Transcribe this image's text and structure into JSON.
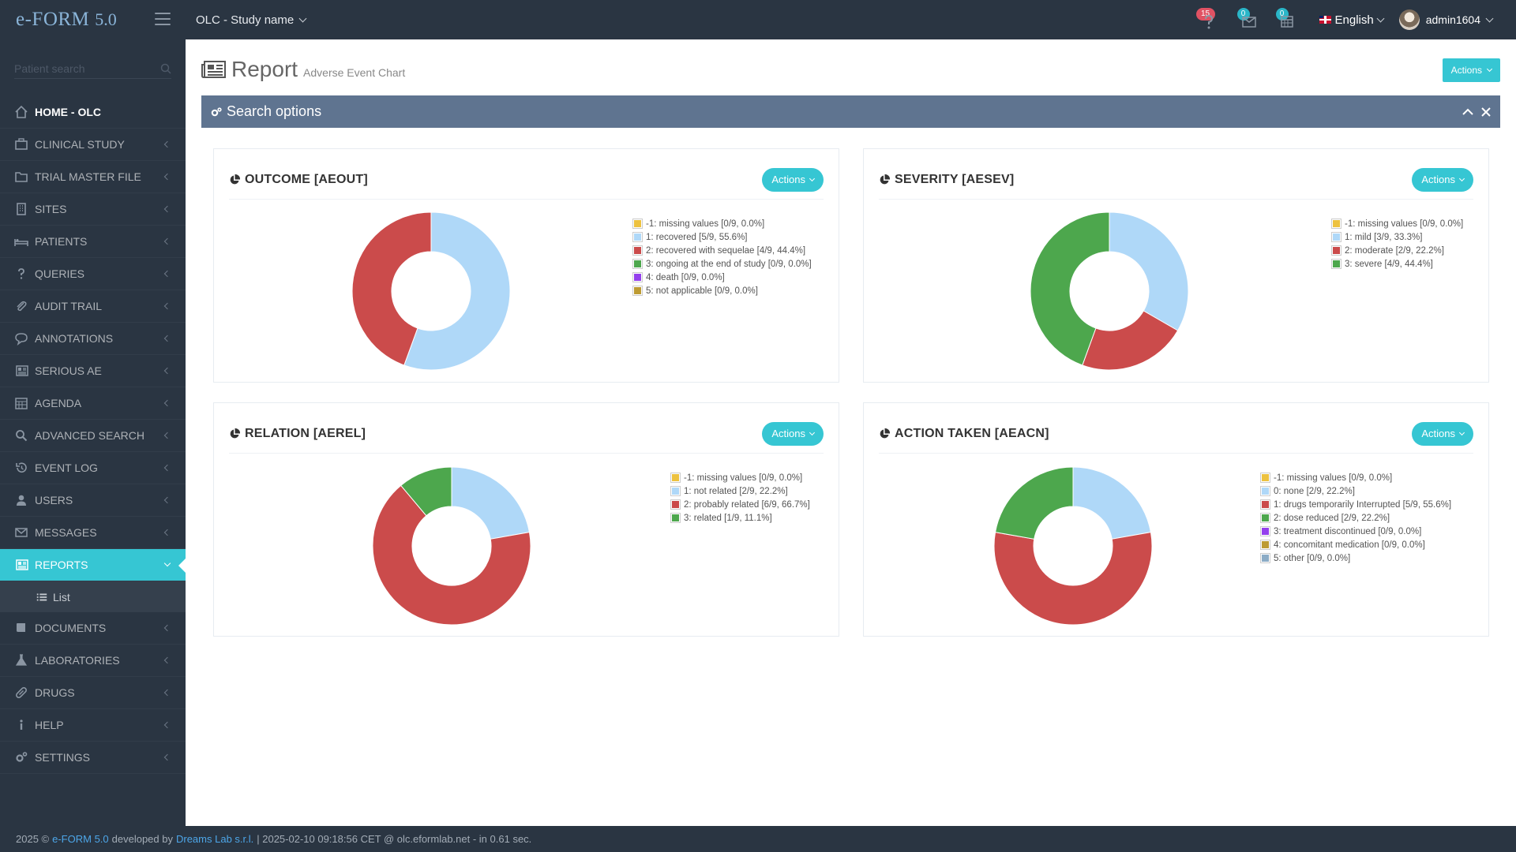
{
  "app": {
    "brand": "e-FORM",
    "version": "5.0"
  },
  "topbar": {
    "study": "OLC - Study name",
    "notifications": [
      {
        "name": "alerts",
        "icon": "question-icon",
        "count": "15"
      },
      {
        "name": "messages",
        "icon": "inbox-icon",
        "count": "0"
      },
      {
        "name": "calendar",
        "icon": "calendar-icon",
        "count": "0"
      }
    ],
    "language": "English",
    "user": "admin1604"
  },
  "sidebar": {
    "search_placeholder": "Patient search",
    "items": [
      {
        "label": "HOME - OLC",
        "icon": "home-icon"
      },
      {
        "label": "CLINICAL STUDY",
        "icon": "briefcase-icon"
      },
      {
        "label": "TRIAL MASTER FILE",
        "icon": "folder-icon"
      },
      {
        "label": "SITES",
        "icon": "building-icon"
      },
      {
        "label": "PATIENTS",
        "icon": "bed-icon"
      },
      {
        "label": "QUERIES",
        "icon": "question-icon"
      },
      {
        "label": "AUDIT TRAIL",
        "icon": "paperclip-icon"
      },
      {
        "label": "ANNOTATIONS",
        "icon": "comment-icon"
      },
      {
        "label": "SERIOUS AE",
        "icon": "newspaper-icon"
      },
      {
        "label": "AGENDA",
        "icon": "calendar-icon"
      },
      {
        "label": "ADVANCED SEARCH",
        "icon": "search-icon"
      },
      {
        "label": "EVENT LOG",
        "icon": "history-icon"
      },
      {
        "label": "USERS",
        "icon": "user-icon"
      },
      {
        "label": "MESSAGES",
        "icon": "envelope-icon"
      },
      {
        "label": "REPORTS",
        "icon": "newspaper-icon"
      },
      {
        "label": "DOCUMENTS",
        "icon": "book-icon"
      },
      {
        "label": "LABORATORIES",
        "icon": "flask-icon"
      },
      {
        "label": "DRUGS",
        "icon": "pill-icon"
      },
      {
        "label": "HELP",
        "icon": "info-icon"
      },
      {
        "label": "SETTINGS",
        "icon": "gears-icon"
      }
    ],
    "submenu": {
      "label": "List",
      "icon": "list-icon"
    }
  },
  "page": {
    "title": "Report",
    "subtitle": "Adverse Event Chart",
    "actions_label": "Actions",
    "search_options_label": "Search options"
  },
  "panels": [
    {
      "title": "OUTCOME [AEOUT]",
      "actions": "Actions"
    },
    {
      "title": "SEVERITY [AESEV]",
      "actions": "Actions"
    },
    {
      "title": "RELATION [AEREL]",
      "actions": "Actions"
    },
    {
      "title": "ACTION TAKEN [AEACN]",
      "actions": "Actions"
    }
  ],
  "colors": {
    "missing": "#edc240",
    "light_blue": "#afd8f8",
    "red": "#cb4b4b",
    "green": "#4da74d",
    "purple": "#9440ed",
    "olive": "#bd9b33",
    "slate": "#8cacc6",
    "accent": "#36c6d3",
    "sidebar": "#2a3542"
  },
  "chart_data": [
    {
      "type": "pie",
      "title": "OUTCOME [AEOUT]",
      "legend_position": "right",
      "series": [
        {
          "name": "-1: missing values [0/9, 0.0%]",
          "value": 0,
          "color": "#edc240"
        },
        {
          "name": "1: recovered [5/9, 55.6%]",
          "value": 5,
          "color": "#afd8f8"
        },
        {
          "name": "2: recovered with sequelae [4/9, 44.4%]",
          "value": 4,
          "color": "#cb4b4b"
        },
        {
          "name": "3: ongoing at the end of study [0/9, 0.0%]",
          "value": 0,
          "color": "#4da74d"
        },
        {
          "name": "4: death [0/9, 0.0%]",
          "value": 0,
          "color": "#9440ed"
        },
        {
          "name": "5: not applicable [0/9, 0.0%]",
          "value": 0,
          "color": "#bd9b33"
        }
      ]
    },
    {
      "type": "pie",
      "title": "SEVERITY [AESEV]",
      "legend_position": "right",
      "series": [
        {
          "name": "-1: missing values [0/9, 0.0%]",
          "value": 0,
          "color": "#edc240"
        },
        {
          "name": "1: mild [3/9, 33.3%]",
          "value": 3,
          "color": "#afd8f8"
        },
        {
          "name": "2: moderate [2/9, 22.2%]",
          "value": 2,
          "color": "#cb4b4b"
        },
        {
          "name": "3: severe [4/9, 44.4%]",
          "value": 4,
          "color": "#4da74d"
        }
      ]
    },
    {
      "type": "pie",
      "title": "RELATION [AEREL]",
      "legend_position": "right",
      "series": [
        {
          "name": "-1: missing values [0/9, 0.0%]",
          "value": 0,
          "color": "#edc240"
        },
        {
          "name": "1: not related [2/9, 22.2%]",
          "value": 2,
          "color": "#afd8f8"
        },
        {
          "name": "2: probably related [6/9, 66.7%]",
          "value": 6,
          "color": "#cb4b4b"
        },
        {
          "name": "3: related [1/9, 11.1%]",
          "value": 1,
          "color": "#4da74d"
        }
      ]
    },
    {
      "type": "pie",
      "title": "ACTION TAKEN [AEACN]",
      "legend_position": "right",
      "series": [
        {
          "name": "-1: missing values [0/9, 0.0%]",
          "value": 0,
          "color": "#edc240"
        },
        {
          "name": "0: none [2/9, 22.2%]",
          "value": 2,
          "color": "#afd8f8"
        },
        {
          "name": "1: drugs temporarily Interrupted [5/9, 55.6%]",
          "value": 5,
          "color": "#cb4b4b"
        },
        {
          "name": "2: dose reduced [2/9, 22.2%]",
          "value": 2,
          "color": "#4da74d"
        },
        {
          "name": "3: treatment discontinued [0/9, 0.0%]",
          "value": 0,
          "color": "#9440ed"
        },
        {
          "name": "4: concomitant medication [0/9, 0.0%]",
          "value": 0,
          "color": "#bd9b33"
        },
        {
          "name": "5: other [0/9, 0.0%]",
          "value": 0,
          "color": "#8cacc6"
        }
      ]
    }
  ],
  "footer": {
    "year": "2025 ©",
    "product_link": "e-FORM 5.0",
    "developed_by": "developed by",
    "company_link": "Dreams Lab s.r.l.",
    "info": "| 2025-02-10 09:18:56 CET @ olc.eformlab.net - in 0.61 sec."
  }
}
